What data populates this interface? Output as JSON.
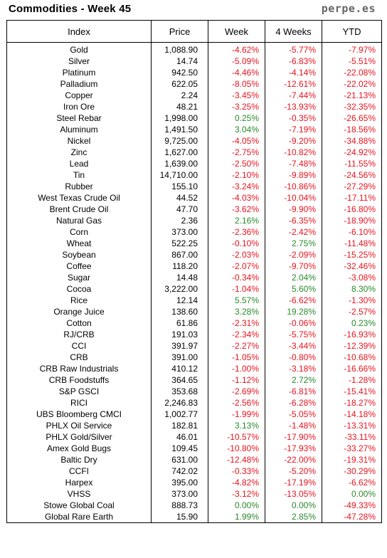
{
  "header": {
    "title": "Commodities - Week 45",
    "site": "perpe.es"
  },
  "columns": [
    "Index",
    "Price",
    "Week",
    "4 Weeks",
    "YTD"
  ],
  "colors": {
    "negative": "#e8141e",
    "positive": "#2a8a2a"
  },
  "rows": [
    [
      "Gold",
      "1,088.90",
      "-4.62%",
      "-5.77%",
      "-7.97%"
    ],
    [
      "Silver",
      "14.74",
      "-5.09%",
      "-6.83%",
      "-5.51%"
    ],
    [
      "Platinum",
      "942.50",
      "-4.46%",
      "-4.14%",
      "-22.08%"
    ],
    [
      "Palladium",
      "622.05",
      "-8.05%",
      "-12.61%",
      "-22.02%"
    ],
    [
      "Copper",
      "2.24",
      "-3.45%",
      "-7.44%",
      "-21.13%"
    ],
    [
      "Iron Ore",
      "48.21",
      "-3.25%",
      "-13.93%",
      "-32.35%"
    ],
    [
      "Steel Rebar",
      "1,998.00",
      "0.25%",
      "-0.35%",
      "-26.65%"
    ],
    [
      "Aluminum",
      "1,491.50",
      "3.04%",
      "-7.19%",
      "-18.56%"
    ],
    [
      "Nickel",
      "9,725.00",
      "-4.05%",
      "-9.20%",
      "-34.88%"
    ],
    [
      "Zinc",
      "1,627.00",
      "-2.75%",
      "-10.82%",
      "-24.92%"
    ],
    [
      "Lead",
      "1,639.00",
      "-2.50%",
      "-7.48%",
      "-11.55%"
    ],
    [
      "Tin",
      "14,710.00",
      "-2.10%",
      "-9.89%",
      "-24.56%"
    ],
    [
      "Rubber",
      "155.10",
      "-3.24%",
      "-10.86%",
      "-27.29%"
    ],
    [
      "West Texas Crude Oil",
      "44.52",
      "-4.03%",
      "-10.04%",
      "-17.11%"
    ],
    [
      "Brent Crude Oil",
      "47.70",
      "-3.62%",
      "-9.90%",
      "-16.80%"
    ],
    [
      "Natural Gas",
      "2.36",
      "2.16%",
      "-6.35%",
      "-18.90%"
    ],
    [
      "Corn",
      "373.00",
      "-2.36%",
      "-2.42%",
      "-6.10%"
    ],
    [
      "Wheat",
      "522.25",
      "-0.10%",
      "2.75%",
      "-11.48%"
    ],
    [
      "Soybean",
      "867.00",
      "-2.03%",
      "-2.09%",
      "-15.25%"
    ],
    [
      "Coffee",
      "118.20",
      "-2.07%",
      "-9.70%",
      "-32.46%"
    ],
    [
      "Sugar",
      "14.48",
      "-0.34%",
      "2.04%",
      "-3.08%"
    ],
    [
      "Cocoa",
      "3,222.00",
      "-1.04%",
      "5.60%",
      "8.30%"
    ],
    [
      "Rice",
      "12.14",
      "5.57%",
      "-6.62%",
      "-1.30%"
    ],
    [
      "Orange Juice",
      "138.60",
      "3.28%",
      "19.28%",
      "-2.57%"
    ],
    [
      "Cotton",
      "61.86",
      "-2.31%",
      "-0.06%",
      "0.23%"
    ],
    [
      "RJ/CRB",
      "191.03",
      "-2.34%",
      "-5.75%",
      "-16.93%"
    ],
    [
      "CCI",
      "391.97",
      "-2.27%",
      "-3.44%",
      "-12.39%"
    ],
    [
      "CRB",
      "391.00",
      "-1.05%",
      "-0.80%",
      "-10.68%"
    ],
    [
      "CRB Raw Industrials",
      "410.12",
      "-1.00%",
      "-3.18%",
      "-16.66%"
    ],
    [
      "CRB Foodstuffs",
      "364.65",
      "-1.12%",
      "2.72%",
      "-1.28%"
    ],
    [
      "S&P GSCI",
      "353.68",
      "-2.69%",
      "-6.81%",
      "-15.41%"
    ],
    [
      "RICI",
      "2,246.83",
      "-2.56%",
      "-6.28%",
      "-18.27%"
    ],
    [
      "UBS Bloomberg CMCI",
      "1,002.77",
      "-1.99%",
      "-5.05%",
      "-14.18%"
    ],
    [
      "PHLX Oil Service",
      "182.81",
      "3.13%",
      "-1.48%",
      "-13.31%"
    ],
    [
      "PHLX Gold/Silver",
      "46.01",
      "-10.57%",
      "-17.90%",
      "-33.11%"
    ],
    [
      "Amex Gold Bugs",
      "109.45",
      "-10.80%",
      "-17.93%",
      "-33.27%"
    ],
    [
      "Baltic Dry",
      "631.00",
      "-12.48%",
      "-22.00%",
      "-19.31%"
    ],
    [
      "CCFI",
      "742.02",
      "-0.33%",
      "-5.20%",
      "-30.29%"
    ],
    [
      "Harpex",
      "395.00",
      "-4.82%",
      "-17.19%",
      "-6.62%"
    ],
    [
      "VHSS",
      "373.00",
      "-3.12%",
      "-13.05%",
      "0.00%"
    ],
    [
      "Stowe Global Coal",
      "888.73",
      "0.00%",
      "0.00%",
      "-49.33%"
    ],
    [
      "Global Rare Earth",
      "15.90",
      "1.99%",
      "2.85%",
      "-47.28%"
    ]
  ]
}
